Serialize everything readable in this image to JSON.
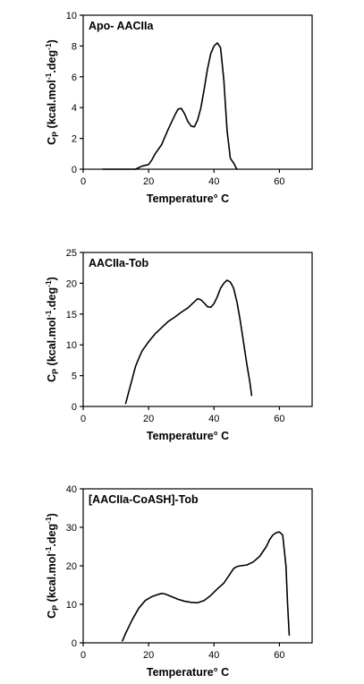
{
  "chart_data": [
    {
      "type": "line",
      "title": "Apo- AACIIa",
      "xlabel": "Temperature° C",
      "ylabel": "Cp (kcal.mol-1.deg-1)",
      "xlim": [
        0,
        70
      ],
      "ylim": [
        0,
        10
      ],
      "xticks": [
        0,
        20,
        40,
        60
      ],
      "yticks": [
        0,
        2,
        4,
        6,
        8,
        10
      ],
      "legend": "none",
      "grid": false,
      "series": [
        {
          "x": [
            6,
            12,
            16,
            17,
            18,
            19,
            20,
            21,
            22,
            24,
            26,
            28,
            29,
            30,
            31,
            32,
            33,
            34,
            35,
            36,
            37,
            38,
            39,
            40,
            41,
            42,
            43,
            44,
            45,
            46,
            47
          ],
          "y": [
            0,
            0,
            0,
            0.1,
            0.2,
            0.25,
            0.3,
            0.6,
            1.0,
            1.6,
            2.6,
            3.5,
            3.9,
            3.95,
            3.6,
            3.1,
            2.8,
            2.75,
            3.2,
            4.0,
            5.2,
            6.5,
            7.5,
            8.0,
            8.2,
            7.9,
            5.8,
            2.5,
            0.7,
            0.4,
            0
          ]
        }
      ]
    },
    {
      "type": "line",
      "title": "AACIIa-Tob",
      "xlabel": "Temperature° C",
      "ylabel": "Cp (kcal.mol-1.deg-1)",
      "xlim": [
        0,
        70
      ],
      "ylim": [
        0,
        25
      ],
      "xticks": [
        0,
        20,
        40,
        60
      ],
      "yticks": [
        0,
        5,
        10,
        15,
        20,
        25
      ],
      "legend": "none",
      "grid": false,
      "series": [
        {
          "x": [
            13,
            14,
            15,
            16,
            17,
            18,
            20,
            22,
            24,
            26,
            28,
            30,
            32,
            34,
            35,
            36,
            37,
            38,
            39,
            40,
            41,
            42,
            43,
            44,
            45,
            46,
            47,
            48,
            49,
            50,
            51,
            51.5
          ],
          "y": [
            0.5,
            2.5,
            4.5,
            6.5,
            7.8,
            9.0,
            10.5,
            11.8,
            12.8,
            13.8,
            14.5,
            15.3,
            16.0,
            17.0,
            17.5,
            17.3,
            16.8,
            16.2,
            16.1,
            16.7,
            17.8,
            19.2,
            20.0,
            20.5,
            20.2,
            19.2,
            17.0,
            14.0,
            10.5,
            7.0,
            3.8,
            1.8
          ]
        }
      ]
    },
    {
      "type": "line",
      "title": "[AACIIa-CoASH]-Tob",
      "xlabel": "Temperature° C",
      "ylabel": "Cp (kcal.mol-1.deg-1)",
      "xlim": [
        0,
        70
      ],
      "ylim": [
        0,
        40
      ],
      "xticks": [
        0,
        20,
        40,
        60
      ],
      "yticks": [
        0,
        10,
        20,
        30,
        40
      ],
      "legend": "none",
      "grid": false,
      "series": [
        {
          "x": [
            12,
            13,
            15,
            17,
            19,
            21,
            23,
            24,
            25,
            27,
            29,
            31,
            33,
            35,
            37,
            39,
            41,
            43,
            45,
            46,
            47,
            48,
            50,
            52,
            54,
            56,
            57,
            58,
            59,
            60,
            61,
            62,
            62.5,
            63
          ],
          "y": [
            0.5,
            2.5,
            6.0,
            9.0,
            11.0,
            12.0,
            12.6,
            12.8,
            12.7,
            12.0,
            11.3,
            10.8,
            10.5,
            10.4,
            11.0,
            12.3,
            14.0,
            15.5,
            18.0,
            19.3,
            19.8,
            20.0,
            20.2,
            21.0,
            22.5,
            25.0,
            26.8,
            28.0,
            28.6,
            28.8,
            28.0,
            20.0,
            10.0,
            2.0
          ]
        }
      ]
    }
  ]
}
